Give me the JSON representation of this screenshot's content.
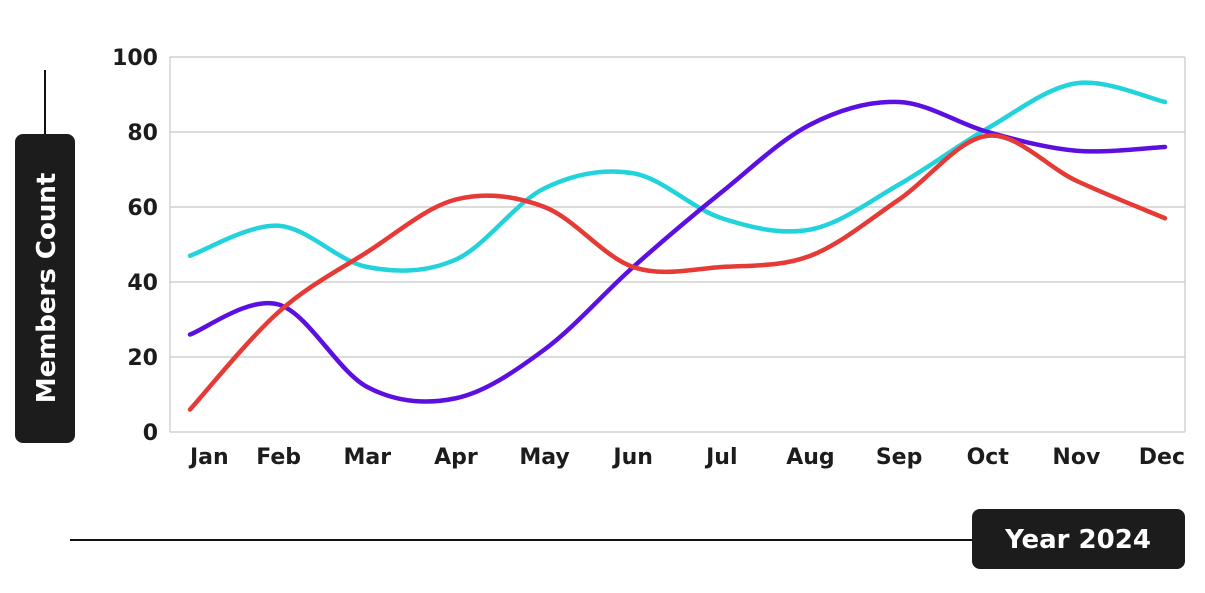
{
  "chart_data": {
    "type": "line",
    "smooth": true,
    "categories": [
      "Jan",
      "Feb",
      "Mar",
      "Apr",
      "May",
      "Jun",
      "Jul",
      "Aug",
      "Sep",
      "Oct",
      "Nov",
      "Dec"
    ],
    "y_ticks": [
      "0",
      "20",
      "40",
      "60",
      "80",
      "100"
    ],
    "ylim": [
      0,
      100
    ],
    "xlabel": "Year 2024",
    "ylabel": "Members Count",
    "grid": true,
    "legend": "none",
    "series": [
      {
        "color": "#22d3dc",
        "values": [
          47,
          55,
          44,
          46,
          65,
          69,
          57,
          54,
          66,
          81,
          93,
          88
        ]
      },
      {
        "color": "#5b0fe0",
        "values": [
          26,
          34,
          12,
          9,
          22,
          44,
          64,
          82,
          88,
          80,
          75,
          76
        ]
      },
      {
        "color": "#e53a35",
        "values": [
          6,
          32,
          48,
          62,
          60,
          44,
          44,
          47,
          62,
          79,
          67,
          57
        ]
      }
    ]
  }
}
